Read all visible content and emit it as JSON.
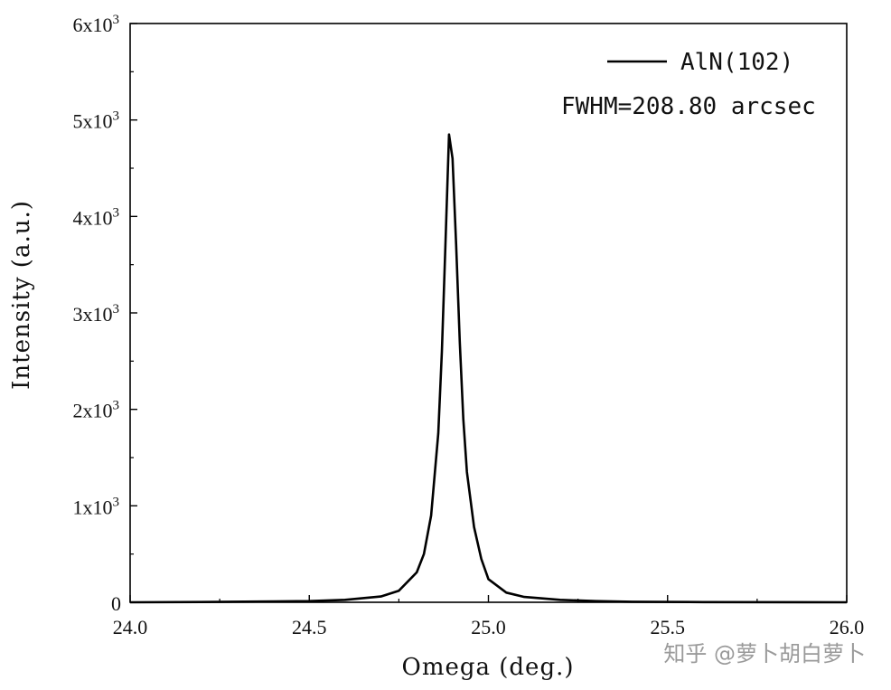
{
  "chart_data": {
    "type": "line",
    "xlabel": "Omega (deg.)",
    "ylabel": "Intensity (a.u.)",
    "xlim": [
      24.0,
      26.0
    ],
    "ylim": [
      0,
      6000
    ],
    "x_ticks": [
      "24.0",
      "24.5",
      "25.0",
      "25.5",
      "26.0"
    ],
    "y_ticks": [
      {
        "base": "0",
        "exp": ""
      },
      {
        "base": "1x10",
        "exp": "3"
      },
      {
        "base": "2x10",
        "exp": "3"
      },
      {
        "base": "3x10",
        "exp": "3"
      },
      {
        "base": "4x10",
        "exp": "3"
      },
      {
        "base": "5x10",
        "exp": "3"
      },
      {
        "base": "6x10",
        "exp": "3"
      }
    ],
    "legend": {
      "position": "top-right",
      "label": "AlN(102)"
    },
    "annotation": "FWHM=208.80 arcsec",
    "grid": false,
    "series": [
      {
        "name": "AlN(102)",
        "x": [
          24.0,
          24.2,
          24.4,
          24.5,
          24.6,
          24.7,
          24.75,
          24.8,
          24.82,
          24.84,
          24.86,
          24.87,
          24.88,
          24.89,
          24.9,
          24.91,
          24.92,
          24.93,
          24.94,
          24.96,
          24.98,
          25.0,
          25.05,
          25.1,
          25.2,
          25.3,
          25.4,
          25.6,
          26.0
        ],
        "values": [
          0,
          3,
          8,
          12,
          25,
          60,
          120,
          310,
          500,
          900,
          1750,
          2600,
          3700,
          4850,
          4600,
          3700,
          2700,
          1900,
          1350,
          780,
          450,
          240,
          100,
          55,
          25,
          12,
          6,
          2,
          0
        ]
      }
    ]
  },
  "watermark": "知乎 @萝卜胡白萝卜",
  "colors": {
    "line": "#000000",
    "axis": "#000000",
    "background": "#ffffff",
    "watermark": "#9a9a9a"
  }
}
